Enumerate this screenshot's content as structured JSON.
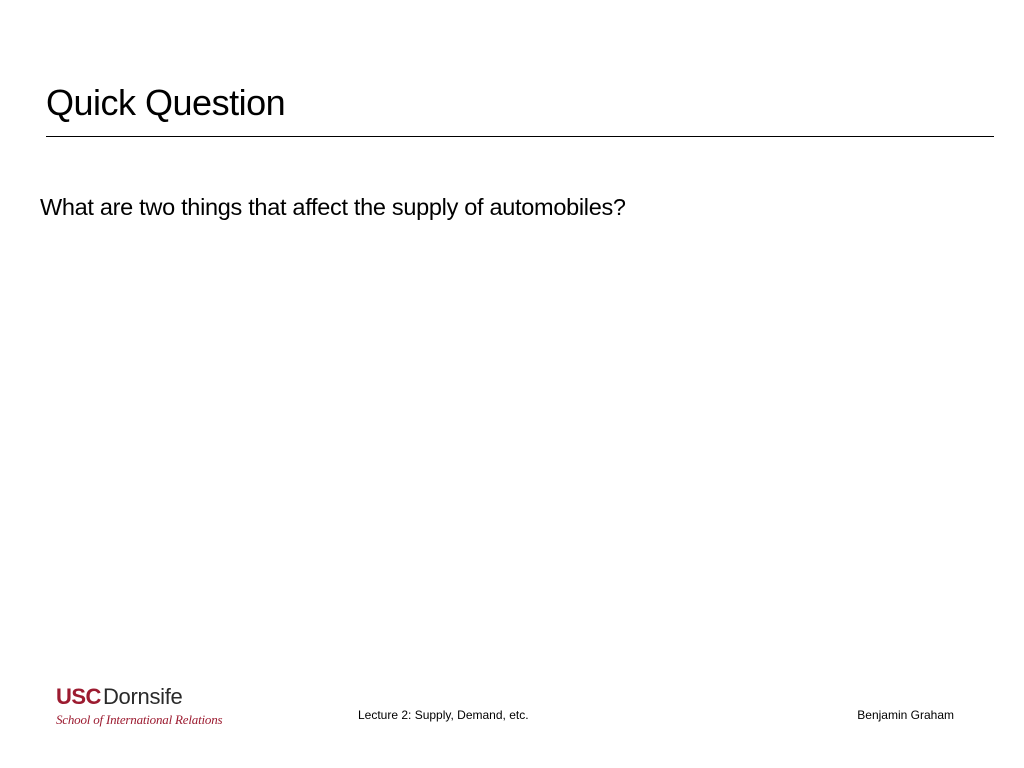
{
  "slide": {
    "title": "Quick Question",
    "body": "What are two things that affect the supply of automobiles?"
  },
  "footer": {
    "logo": {
      "prefix": "USC",
      "main": "Dornsife",
      "subtitle": "School of International Relations",
      "prefix_color": "#9c1b30",
      "main_color": "#2a2a2a",
      "sub_color": "#9c1b30"
    },
    "center": "Lecture 2: Supply, Demand, etc.",
    "right": "Benjamin Graham"
  },
  "style": {
    "background_color": "#ffffff",
    "title_fontsize": 36,
    "body_fontsize": 23.5,
    "footer_fontsize": 12,
    "text_color": "#000000",
    "underline_color": "#000000"
  }
}
